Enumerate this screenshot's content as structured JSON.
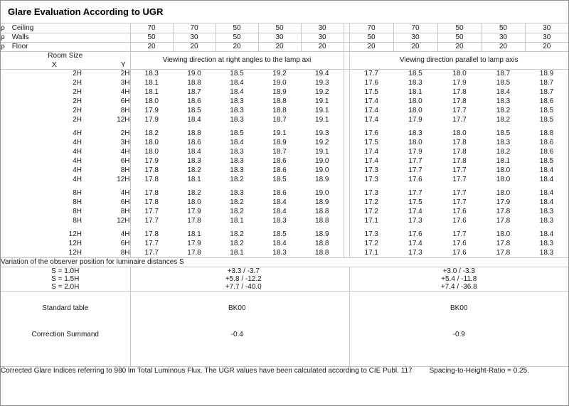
{
  "title": "Glare Evaluation According to UGR",
  "reflectance_rows": [
    {
      "symbol": "ρ",
      "name": "Ceiling",
      "left": [
        "70",
        "70",
        "50",
        "50",
        "30"
      ],
      "right": [
        "70",
        "70",
        "50",
        "50",
        "30"
      ]
    },
    {
      "symbol": "ρ",
      "name": "Walls",
      "left": [
        "50",
        "30",
        "50",
        "30",
        "30"
      ],
      "right": [
        "50",
        "30",
        "50",
        "30",
        "30"
      ]
    },
    {
      "symbol": "ρ",
      "name": "Floor",
      "left": [
        "20",
        "20",
        "20",
        "20",
        "20"
      ],
      "right": [
        "20",
        "20",
        "20",
        "20",
        "20"
      ]
    }
  ],
  "header": {
    "room_size": "Room Size",
    "x_label": "X",
    "y_label": "Y",
    "left_title": "Viewing direction at right angles to the lamp axi",
    "right_title": "Viewing direction parallel to lamp axis"
  },
  "ugr_blocks": [
    {
      "rows": [
        {
          "x": "2H",
          "y": "2H",
          "left": [
            "18.3",
            "19.0",
            "18.5",
            "19.2",
            "19.4"
          ],
          "right": [
            "17.7",
            "18.5",
            "18.0",
            "18.7",
            "18.9"
          ]
        },
        {
          "x": "2H",
          "y": "3H",
          "left": [
            "18.1",
            "18.8",
            "18.4",
            "19.0",
            "19.3"
          ],
          "right": [
            "17.6",
            "18.3",
            "17.9",
            "18.5",
            "18.7"
          ]
        },
        {
          "x": "2H",
          "y": "4H",
          "left": [
            "18.1",
            "18.7",
            "18.4",
            "18.9",
            "19.2"
          ],
          "right": [
            "17.5",
            "18.1",
            "17.8",
            "18.4",
            "18.7"
          ]
        },
        {
          "x": "2H",
          "y": "6H",
          "left": [
            "18.0",
            "18.6",
            "18.3",
            "18.8",
            "19.1"
          ],
          "right": [
            "17.4",
            "18.0",
            "17.8",
            "18.3",
            "18.6"
          ]
        },
        {
          "x": "2H",
          "y": "8H",
          "left": [
            "17.9",
            "18.5",
            "18.3",
            "18.8",
            "19.1"
          ],
          "right": [
            "17.4",
            "18.0",
            "17.7",
            "18.2",
            "18.5"
          ]
        },
        {
          "x": "2H",
          "y": "12H",
          "left": [
            "17.9",
            "18.4",
            "18.3",
            "18.7",
            "19.1"
          ],
          "right": [
            "17.4",
            "17.9",
            "17.7",
            "18.2",
            "18.5"
          ]
        }
      ]
    },
    {
      "rows": [
        {
          "x": "4H",
          "y": "2H",
          "left": [
            "18.2",
            "18.8",
            "18.5",
            "19.1",
            "19.3"
          ],
          "right": [
            "17.6",
            "18.3",
            "18.0",
            "18.5",
            "18.8"
          ]
        },
        {
          "x": "4H",
          "y": "3H",
          "left": [
            "18.0",
            "18.6",
            "18.4",
            "18.9",
            "19.2"
          ],
          "right": [
            "17.5",
            "18.0",
            "17.8",
            "18.3",
            "18.6"
          ]
        },
        {
          "x": "4H",
          "y": "4H",
          "left": [
            "18.0",
            "18.4",
            "18.3",
            "18.7",
            "19.1"
          ],
          "right": [
            "17.4",
            "17.9",
            "17.8",
            "18.2",
            "18.6"
          ]
        },
        {
          "x": "4H",
          "y": "6H",
          "left": [
            "17.9",
            "18.3",
            "18.3",
            "18.6",
            "19.0"
          ],
          "right": [
            "17.4",
            "17.7",
            "17.8",
            "18.1",
            "18.5"
          ]
        },
        {
          "x": "4H",
          "y": "8H",
          "left": [
            "17.8",
            "18.2",
            "18.3",
            "18.6",
            "19.0"
          ],
          "right": [
            "17.3",
            "17.7",
            "17.7",
            "18.0",
            "18.4"
          ]
        },
        {
          "x": "4H",
          "y": "12H",
          "left": [
            "17.8",
            "18.1",
            "18.2",
            "18.5",
            "18.9"
          ],
          "right": [
            "17.3",
            "17.6",
            "17.7",
            "18.0",
            "18.4"
          ]
        }
      ]
    },
    {
      "rows": [
        {
          "x": "8H",
          "y": "4H",
          "left": [
            "17.8",
            "18.2",
            "18.3",
            "18.6",
            "19.0"
          ],
          "right": [
            "17.3",
            "17.7",
            "17.7",
            "18.0",
            "18.4"
          ]
        },
        {
          "x": "8H",
          "y": "6H",
          "left": [
            "17.8",
            "18.0",
            "18.2",
            "18.4",
            "18.9"
          ],
          "right": [
            "17.2",
            "17.5",
            "17.7",
            "17.9",
            "18.4"
          ]
        },
        {
          "x": "8H",
          "y": "8H",
          "left": [
            "17.7",
            "17.9",
            "18.2",
            "18.4",
            "18.8"
          ],
          "right": [
            "17.2",
            "17.4",
            "17.6",
            "17.8",
            "18.3"
          ]
        },
        {
          "x": "8H",
          "y": "12H",
          "left": [
            "17.7",
            "17.8",
            "18.1",
            "18.3",
            "18.8"
          ],
          "right": [
            "17.1",
            "17.3",
            "17.6",
            "17.8",
            "18.3"
          ]
        }
      ]
    },
    {
      "rows": [
        {
          "x": "12H",
          "y": "4H",
          "left": [
            "17.8",
            "18.1",
            "18.2",
            "18.5",
            "18.9"
          ],
          "right": [
            "17.3",
            "17.6",
            "17.7",
            "18.0",
            "18.4"
          ]
        },
        {
          "x": "12H",
          "y": "6H",
          "left": [
            "17.7",
            "17.9",
            "18.2",
            "18.4",
            "18.8"
          ],
          "right": [
            "17.2",
            "17.4",
            "17.6",
            "17.8",
            "18.3"
          ]
        },
        {
          "x": "12H",
          "y": "8H",
          "left": [
            "17.7",
            "17.8",
            "18.1",
            "18.3",
            "18.8"
          ],
          "right": [
            "17.1",
            "17.3",
            "17.6",
            "17.8",
            "18.3"
          ]
        }
      ]
    }
  ],
  "variation_note": "Variation of the observer position for luminaire distances S",
  "s_variation": [
    {
      "label": "S = 1.0H",
      "left": "+3.3 / -3.7",
      "right": "+3.0 / -3.3"
    },
    {
      "label": "S = 1.5H",
      "left": "+5.8 / -12.2",
      "right": "+5.4 / -11.8"
    },
    {
      "label": "S = 2.0H",
      "left": "+7.7 / -40.0",
      "right": "+7.4 / -36.8"
    }
  ],
  "summary_rows": [
    {
      "label": "Standard table",
      "left": "BK00",
      "right": "BK00"
    },
    {
      "label": "Correction Summand",
      "left": "-0.4",
      "right": "-0.9"
    }
  ],
  "footer": {
    "text": "Corrected Glare Indices referring to 980 lm Total Luminous Flux. The UGR values have been calculated according to CIE Publ. 117",
    "ratio": "Spacing-to-Height-Ratio = 0.25."
  }
}
